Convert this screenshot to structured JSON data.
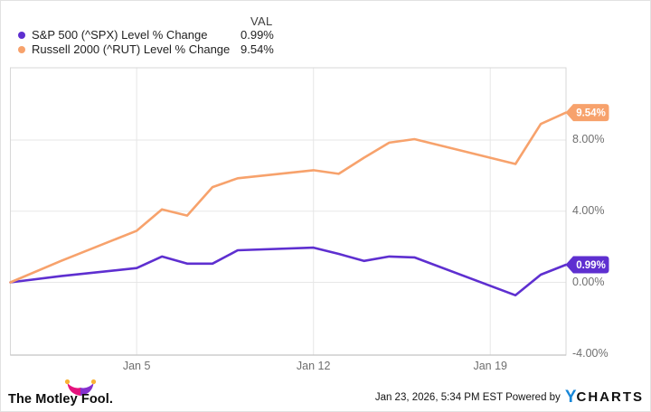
{
  "legend": {
    "val_header": "VAL",
    "series": [
      {
        "label": "S&P 500 (^SPX) Level % Change",
        "value": "0.99%"
      },
      {
        "label": "Russell 2000 (^RUT) Level % Change",
        "value": "9.54%"
      }
    ]
  },
  "chart_data": {
    "type": "line",
    "title": "",
    "xlabel": "",
    "ylabel": "",
    "x_unit": "calendar days since Dec 31",
    "xlim": [
      0,
      22
    ],
    "ylim": [
      -4.09,
      12.06
    ],
    "grid": true,
    "x_ticks": [
      {
        "day": 5,
        "label": "Jan 5"
      },
      {
        "day": 12,
        "label": "Jan 12"
      },
      {
        "day": 19,
        "label": "Jan 19"
      }
    ],
    "y_ticks": [
      {
        "value": 8,
        "label": "8.00%"
      },
      {
        "value": 4,
        "label": "4.00%"
      },
      {
        "value": 0,
        "label": "0.00%"
      },
      {
        "value": -4,
        "label": "-4.00%"
      }
    ],
    "series": [
      {
        "name": "S&P 500 (^SPX) Level % Change",
        "color": "#5e2fd0",
        "end_label": "0.99%",
        "points": [
          [
            0,
            0.0
          ],
          [
            2,
            0.35
          ],
          [
            5,
            0.8
          ],
          [
            6,
            1.45
          ],
          [
            7,
            1.05
          ],
          [
            8,
            1.05
          ],
          [
            9,
            1.8
          ],
          [
            12,
            1.95
          ],
          [
            13,
            1.6
          ],
          [
            14,
            1.2
          ],
          [
            15,
            1.45
          ],
          [
            16,
            1.4
          ],
          [
            20,
            -0.73
          ],
          [
            21,
            0.43
          ],
          [
            22,
            0.99
          ]
        ]
      },
      {
        "name": "Russell 2000 (^RUT) Level % Change",
        "color": "#f7a26c",
        "end_label": "9.54%",
        "points": [
          [
            0,
            0.0
          ],
          [
            2,
            1.2
          ],
          [
            5,
            2.9
          ],
          [
            6,
            4.1
          ],
          [
            7,
            3.75
          ],
          [
            8,
            5.35
          ],
          [
            9,
            5.85
          ],
          [
            12,
            6.3
          ],
          [
            13,
            6.1
          ],
          [
            14,
            7.0
          ],
          [
            15,
            7.85
          ],
          [
            16,
            8.05
          ],
          [
            20,
            6.65
          ],
          [
            21,
            8.9
          ],
          [
            22,
            9.54
          ]
        ]
      }
    ],
    "legend_position": "top-left"
  },
  "footer": {
    "brand": "The Motley Fool.",
    "timestamp_line": "Jan 23, 2026, 5:34 PM EST Powered by",
    "ycharts_y": "Y",
    "ycharts_rest": "CHARTS"
  },
  "colors": {
    "spx": "#5e2fd0",
    "rut": "#f7a26c",
    "gridline": "#e7e7e7",
    "plot_border": "#d7d7d7",
    "bottom_axis": "#c3c3c3",
    "tick_text": "#6f6f6f",
    "hat_pink": "#e5137d",
    "hat_purple": "#8430ce",
    "hat_ball": "#f9b234",
    "ycharts_blue": "#1787d8"
  }
}
